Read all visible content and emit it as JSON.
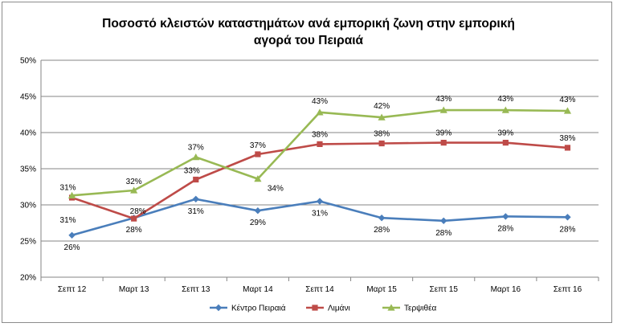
{
  "chart_data": {
    "type": "line",
    "title_lines": [
      "Ποσοστό κλειστών καταστημάτων ανά εμπορική ζωνη στην εμπορική",
      "αγορά του Πειραιά"
    ],
    "categories": [
      "Σεπτ 12",
      "Μαρτ 13",
      "Σεπτ 13",
      "Μαρτ 14",
      "Σεπτ 14",
      "Μαρτ 15",
      "Σεπτ 15",
      "Μαρτ 16",
      "Σεπτ 16"
    ],
    "ylim": [
      20,
      50
    ],
    "yticks": [
      20,
      25,
      30,
      35,
      40,
      45,
      50
    ],
    "ytick_labels": [
      "20%",
      "25%",
      "30%",
      "35%",
      "40%",
      "45%",
      "50%"
    ],
    "grid": true,
    "legend_position": "bottom",
    "series": [
      {
        "name": "Κέντρο Πειραιά",
        "color": "#4a7ebb",
        "marker": "diamond",
        "values": [
          25.8,
          28.2,
          30.8,
          29.2,
          30.5,
          28.2,
          27.8,
          28.4,
          28.3
        ],
        "labels": [
          "26%",
          "28%",
          "31%",
          "29%",
          "31%",
          "28%",
          "28%",
          "28%",
          "28%"
        ],
        "label_position": "below"
      },
      {
        "name": "Λιμάνι",
        "color": "#be4b48",
        "marker": "square",
        "values": [
          31.0,
          28.1,
          33.5,
          37.0,
          38.4,
          38.5,
          38.6,
          38.6,
          37.9
        ],
        "labels": [
          "31%",
          "28%",
          "33%",
          "37%",
          "38%",
          "38%",
          "39%",
          "39%",
          "38%"
        ],
        "label_position": "mixed"
      },
      {
        "name": "Τερψιθέα",
        "color": "#98b954",
        "marker": "triangle",
        "values": [
          31.3,
          32.0,
          36.6,
          33.6,
          42.8,
          42.1,
          43.1,
          43.1,
          43.0
        ],
        "labels": [
          "31%",
          "32%",
          "37%",
          "34%",
          "43%",
          "42%",
          "43%",
          "43%",
          "43%"
        ],
        "label_position": "above"
      }
    ]
  }
}
